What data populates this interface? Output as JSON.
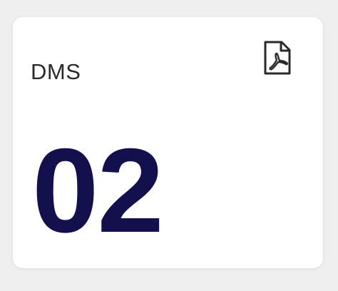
{
  "card": {
    "title": "DMS",
    "value": "02",
    "icon": "pdf-file-icon"
  },
  "colors": {
    "background": "#efefef",
    "card": "#ffffff",
    "value": "#140f4d",
    "title": "#2a2a2a"
  }
}
